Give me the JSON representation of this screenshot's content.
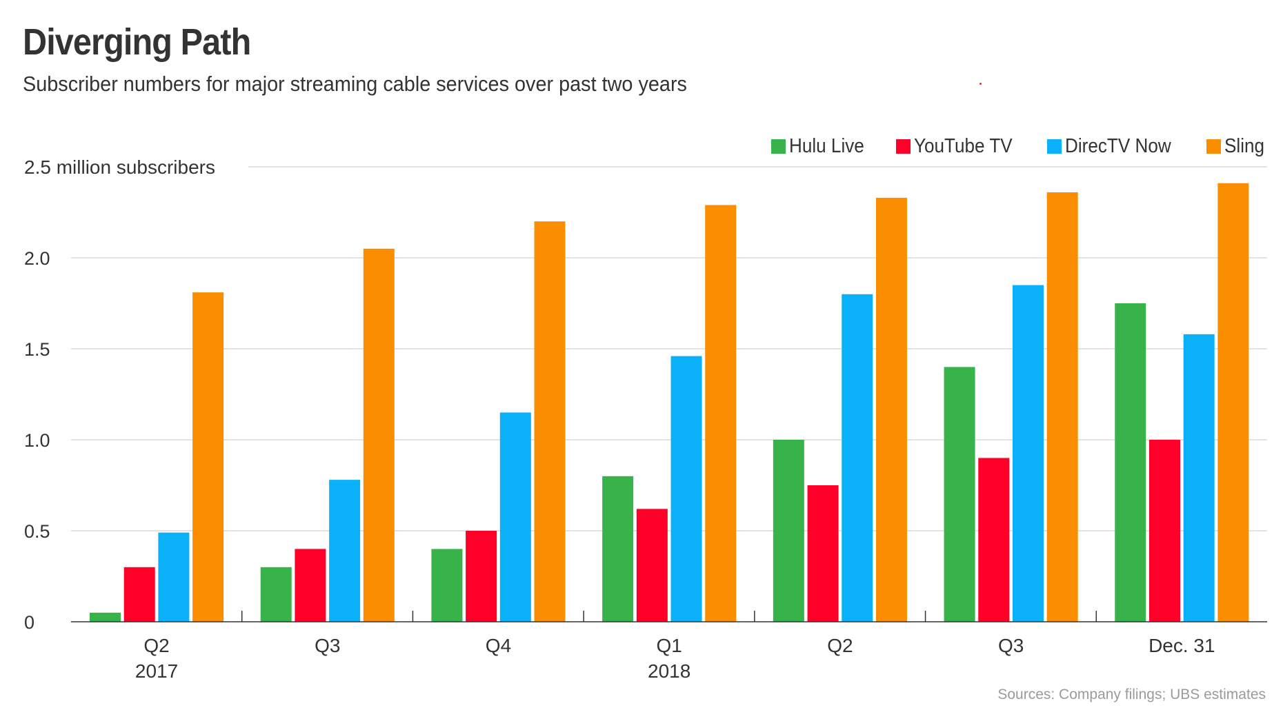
{
  "header": {
    "title": "Diverging Path",
    "subtitle": "Subscriber numbers for major streaming cable services over past two years"
  },
  "legend": [
    {
      "label": "Hulu Live",
      "color": "#37b34a"
    },
    {
      "label": "YouTube TV",
      "color": "#ff0028"
    },
    {
      "label": "DirecTV Now",
      "color": "#0ab1f9"
    },
    {
      "label": "Sling",
      "color": "#fa8d00"
    }
  ],
  "footer": {
    "source": "Sources: Company filings; UBS estimates"
  },
  "chart_data": {
    "type": "bar",
    "title": "Diverging Path",
    "subtitle": "Subscriber numbers for major streaming cable services over past two years",
    "xlabel": "",
    "ylabel": "2.5 million subscribers",
    "ylim": [
      0,
      2.5
    ],
    "yticks": [
      {
        "value": 0,
        "label": "0"
      },
      {
        "value": 0.5,
        "label": "0.5"
      },
      {
        "value": 1.0,
        "label": "1.0"
      },
      {
        "value": 1.5,
        "label": "1.5"
      },
      {
        "value": 2.0,
        "label": "2.0"
      },
      {
        "value": 2.5,
        "label": "2.5 million subscribers"
      }
    ],
    "grid": true,
    "legend_position": "top-right",
    "categories": [
      "Q2",
      "Q3",
      "Q4",
      "Q1",
      "Q2",
      "Q3",
      "Dec. 31"
    ],
    "category_sublabels": [
      "2017",
      "",
      "",
      "2018",
      "",
      "",
      ""
    ],
    "series": [
      {
        "name": "Hulu Live",
        "color": "#37b34a",
        "values": [
          0.05,
          0.3,
          0.4,
          0.8,
          1.0,
          1.4,
          1.75
        ]
      },
      {
        "name": "YouTube TV",
        "color": "#ff0028",
        "values": [
          0.3,
          0.4,
          0.5,
          0.62,
          0.75,
          0.9,
          1.0
        ]
      },
      {
        "name": "DirecTV Now",
        "color": "#0ab1f9",
        "values": [
          0.49,
          0.78,
          1.15,
          1.46,
          1.8,
          1.85,
          1.58
        ]
      },
      {
        "name": "Sling",
        "color": "#fa8d00",
        "values": [
          1.81,
          2.05,
          2.2,
          2.29,
          2.33,
          2.36,
          2.41
        ]
      }
    ],
    "source": "Sources: Company filings; UBS estimates"
  }
}
